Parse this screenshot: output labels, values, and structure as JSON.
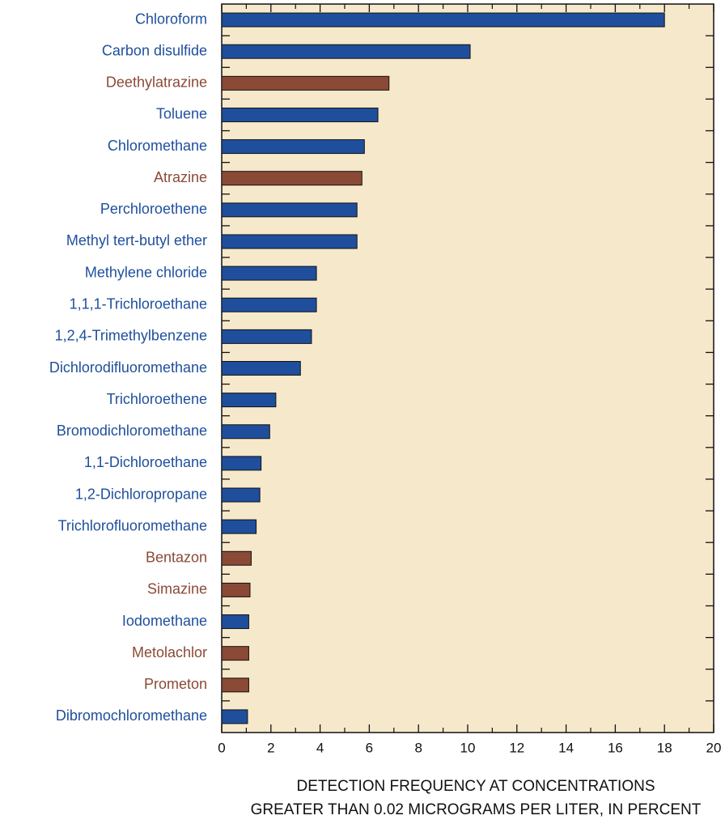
{
  "chart_data": {
    "type": "hbar",
    "categories": [
      "Chloroform",
      "Carbon disulfide",
      "Deethylatrazine",
      "Toluene",
      "Chloromethane",
      "Atrazine",
      "Perchloroethene",
      "Methyl tert-butyl ether",
      "Methylene chloride",
      "1,1,1-Trichloroethane",
      "1,2,4-Trimethylbenzene",
      "Dichlorodifluoromethane",
      "Trichloroethene",
      "Bromodichloromethane",
      "1,1-Dichloroethane",
      "1,2-Dichloropropane",
      "Trichlorofluoromethane",
      "Bentazon",
      "Simazine",
      "Iodomethane",
      "Metolachlor",
      "Prometon",
      "Dibromochloromethane"
    ],
    "values": [
      18.0,
      10.1,
      6.8,
      6.35,
      5.8,
      5.7,
      5.5,
      5.5,
      3.85,
      3.85,
      3.65,
      3.2,
      2.2,
      1.95,
      1.6,
      1.55,
      1.4,
      1.2,
      1.15,
      1.1,
      1.1,
      1.1,
      1.05
    ],
    "colors": [
      "#1f4f9c",
      "#1f4f9c",
      "#8a4a35",
      "#1f4f9c",
      "#1f4f9c",
      "#8a4a35",
      "#1f4f9c",
      "#1f4f9c",
      "#1f4f9c",
      "#1f4f9c",
      "#1f4f9c",
      "#1f4f9c",
      "#1f4f9c",
      "#1f4f9c",
      "#1f4f9c",
      "#1f4f9c",
      "#1f4f9c",
      "#8a4a35",
      "#8a4a35",
      "#1f4f9c",
      "#8a4a35",
      "#8a4a35",
      "#1f4f9c"
    ],
    "xlim": [
      0,
      20
    ],
    "xticks": [
      0,
      2,
      4,
      6,
      8,
      10,
      12,
      14,
      16,
      18,
      20
    ],
    "xlabel": [
      "DETECTION FREQUENCY AT CONCENTRATIONS",
      "GREATER THAN 0.02 MICROGRAMS PER LITER, IN PERCENT"
    ],
    "background": "#f6e8cb"
  }
}
